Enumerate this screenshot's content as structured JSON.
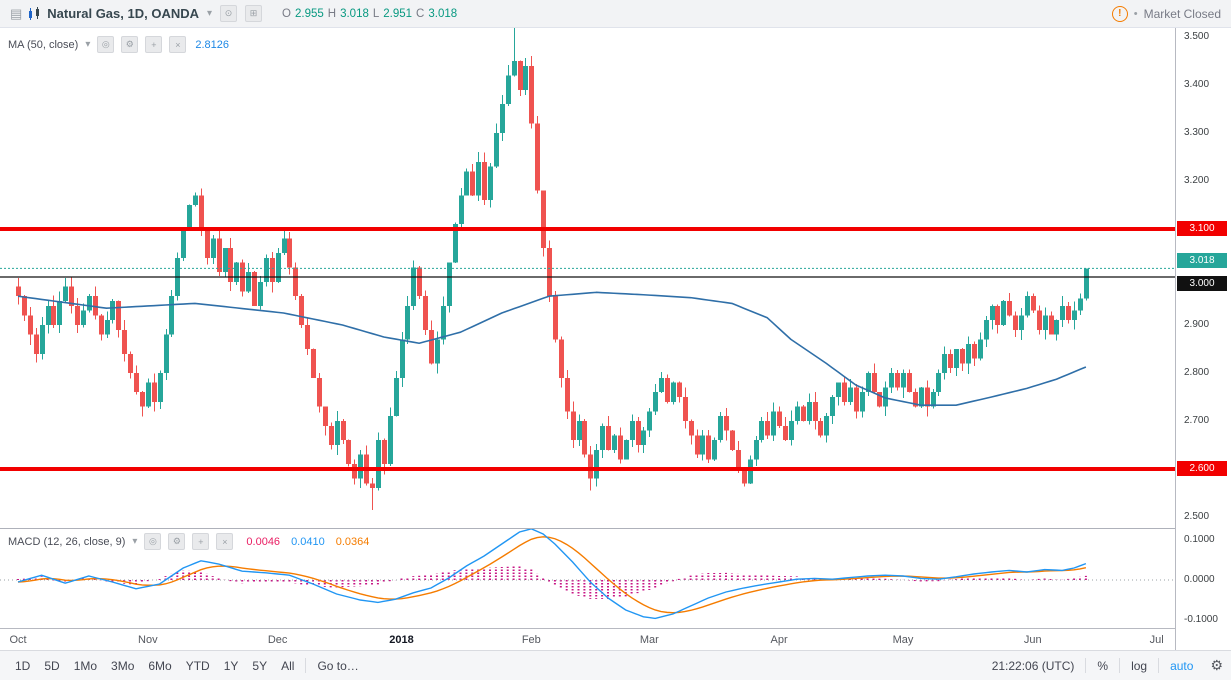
{
  "header": {
    "symbol_title": "Natural Gas, 1D, OANDA",
    "ohlc_keys": [
      "O",
      "H",
      "L",
      "C"
    ],
    "ohlc": {
      "o": "2.955",
      "h": "3.018",
      "l": "2.951",
      "c": "3.018"
    },
    "market_status": "Market Closed"
  },
  "indicators": {
    "ma": {
      "label": "MA (50, close)",
      "value": "2.8126"
    },
    "macd": {
      "label": "MACD (12, 26, close, 9)",
      "hist": "0.0046",
      "macd": "0.0410",
      "signal": "0.0364"
    }
  },
  "icons": {
    "menu": "▤",
    "caret": "▾",
    "eye": "◎",
    "gear": "⚙",
    "plus": "+",
    "close": "×",
    "circle_dot": "⊙",
    "squared_plus": "⊞",
    "warning": "!",
    "dot": "•"
  },
  "toolbar": {
    "ranges": [
      "1D",
      "5D",
      "1Mo",
      "3Mo",
      "6Mo",
      "YTD",
      "1Y",
      "5Y",
      "All"
    ],
    "goto": "Go to…",
    "clock": "21:22:06 (UTC)",
    "percent": "%",
    "log": "log",
    "auto": "auto"
  },
  "chart_data": {
    "type": "candlestick",
    "symbol": "Natural Gas",
    "interval": "1D",
    "source": "OANDA",
    "colors": {
      "up": "#26a69a",
      "down": "#ef5350",
      "ma": "#2f6fa8",
      "macd": "#2196f3",
      "signal": "#f57c00",
      "hist": "#c71585",
      "level": "#f20000",
      "last": "#26a69a",
      "black_line": "#111111"
    },
    "closes": [
      2.96,
      2.92,
      2.88,
      2.84,
      2.9,
      2.94,
      2.9,
      2.95,
      2.98,
      2.94,
      2.9,
      2.93,
      2.96,
      2.92,
      2.88,
      2.91,
      2.95,
      2.89,
      2.84,
      2.8,
      2.76,
      2.73,
      2.78,
      2.74,
      2.8,
      2.88,
      2.96,
      3.04,
      3.1,
      3.15,
      3.17,
      3.1,
      3.04,
      3.08,
      3.01,
      3.06,
      2.99,
      3.03,
      2.97,
      3.01,
      2.94,
      2.99,
      3.04,
      2.99,
      3.05,
      3.08,
      3.02,
      2.96,
      2.9,
      2.85,
      2.79,
      2.73,
      2.69,
      2.65,
      2.7,
      2.66,
      2.61,
      2.58,
      2.63,
      2.57,
      2.56,
      2.66,
      2.61,
      2.71,
      2.79,
      2.87,
      2.94,
      3.02,
      2.96,
      2.89,
      2.82,
      2.87,
      2.94,
      3.03,
      3.11,
      3.17,
      3.22,
      3.17,
      3.24,
      3.16,
      3.23,
      3.3,
      3.36,
      3.42,
      3.45,
      3.39,
      3.44,
      3.32,
      3.18,
      3.06,
      2.96,
      2.87,
      2.79,
      2.72,
      2.66,
      2.7,
      2.63,
      2.58,
      2.64,
      2.69,
      2.64,
      2.67,
      2.62,
      2.66,
      2.7,
      2.65,
      2.68,
      2.72,
      2.76,
      2.79,
      2.74,
      2.78,
      2.75,
      2.7,
      2.67,
      2.63,
      2.67,
      2.62,
      2.66,
      2.71,
      2.68,
      2.64,
      2.6,
      2.57,
      2.62,
      2.66,
      2.7,
      2.67,
      2.72,
      2.69,
      2.66,
      2.7,
      2.73,
      2.7,
      2.74,
      2.7,
      2.67,
      2.71,
      2.75,
      2.78,
      2.74,
      2.77,
      2.72,
      2.76,
      2.8,
      2.76,
      2.73,
      2.77,
      2.8,
      2.77,
      2.8,
      2.76,
      2.73,
      2.77,
      2.73,
      2.76,
      2.8,
      2.84,
      2.81,
      2.85,
      2.82,
      2.86,
      2.83,
      2.87,
      2.91,
      2.94,
      2.9,
      2.95,
      2.92,
      2.89,
      2.92,
      2.96,
      2.93,
      2.89,
      2.92,
      2.88,
      2.91,
      2.94,
      2.91,
      2.93,
      2.955,
      3.018
    ],
    "first_open": 2.98,
    "last_candle": {
      "o": 2.955,
      "h": 3.018,
      "l": 2.951,
      "c": 3.018
    },
    "wick_overrides": {
      "60": {
        "l": 2.515
      },
      "84": {
        "h": 3.52
      },
      "97": {
        "l": 2.555
      },
      "181": {
        "h": 3.018,
        "l": 2.951
      }
    },
    "ma50": [
      [
        0,
        2.96
      ],
      [
        15,
        2.935
      ],
      [
        30,
        2.945
      ],
      [
        45,
        2.925
      ],
      [
        55,
        2.9
      ],
      [
        62,
        2.875
      ],
      [
        68,
        2.862
      ],
      [
        75,
        2.885
      ],
      [
        82,
        2.925
      ],
      [
        90,
        2.96
      ],
      [
        98,
        2.968
      ],
      [
        106,
        2.963
      ],
      [
        114,
        2.957
      ],
      [
        121,
        2.945
      ],
      [
        127,
        2.915
      ],
      [
        131,
        2.87
      ],
      [
        137,
        2.82
      ],
      [
        142,
        2.775
      ],
      [
        147,
        2.748
      ],
      [
        153,
        2.733
      ],
      [
        159,
        2.733
      ],
      [
        165,
        2.75
      ],
      [
        171,
        2.768
      ],
      [
        176,
        2.787
      ],
      [
        181,
        2.8126
      ]
    ],
    "macd_line": [
      [
        0,
        -0.005
      ],
      [
        4,
        0.012
      ],
      [
        8,
        -0.008
      ],
      [
        12,
        0.01
      ],
      [
        16,
        -0.005
      ],
      [
        20,
        -0.022
      ],
      [
        24,
        -0.01
      ],
      [
        28,
        0.03
      ],
      [
        31,
        0.048
      ],
      [
        34,
        0.04
      ],
      [
        38,
        0.022
      ],
      [
        42,
        0.018
      ],
      [
        46,
        0.012
      ],
      [
        50,
        -0.01
      ],
      [
        54,
        -0.035
      ],
      [
        58,
        -0.05
      ],
      [
        61,
        -0.056
      ],
      [
        64,
        -0.048
      ],
      [
        67,
        -0.032
      ],
      [
        70,
        -0.02
      ],
      [
        73,
        0.005
      ],
      [
        76,
        0.035
      ],
      [
        79,
        0.06
      ],
      [
        82,
        0.09
      ],
      [
        85,
        0.12
      ],
      [
        87,
        0.128
      ],
      [
        89,
        0.115
      ],
      [
        91,
        0.09
      ],
      [
        94,
        0.045
      ],
      [
        97,
        -0.005
      ],
      [
        100,
        -0.045
      ],
      [
        103,
        -0.075
      ],
      [
        106,
        -0.092
      ],
      [
        108,
        -0.096
      ],
      [
        111,
        -0.085
      ],
      [
        114,
        -0.065
      ],
      [
        117,
        -0.045
      ],
      [
        120,
        -0.03
      ],
      [
        123,
        -0.02
      ],
      [
        126,
        -0.012
      ],
      [
        129,
        -0.005
      ],
      [
        132,
        0.002
      ],
      [
        135,
        0.004
      ],
      [
        138,
        0.002
      ],
      [
        141,
        0.006
      ],
      [
        144,
        0.01
      ],
      [
        147,
        0.012
      ],
      [
        150,
        0.01
      ],
      [
        153,
        0.004
      ],
      [
        156,
        0.002
      ],
      [
        159,
        0.008
      ],
      [
        162,
        0.015
      ],
      [
        165,
        0.02
      ],
      [
        168,
        0.024
      ],
      [
        171,
        0.02
      ],
      [
        174,
        0.026
      ],
      [
        177,
        0.024
      ],
      [
        179,
        0.03
      ],
      [
        181,
        0.041
      ]
    ],
    "levels": [
      {
        "price": 3.1,
        "type": "resistance"
      },
      {
        "price": 2.6,
        "type": "support"
      }
    ],
    "last_price_line": 3.018,
    "black_line_price": 3.0,
    "y_axis_ticks": [
      3.5,
      3.4,
      3.3,
      3.2,
      2.9,
      2.8,
      2.7,
      2.5
    ],
    "y_axis_tags": [
      {
        "p": 3.1,
        "bg": "#f20000"
      },
      {
        "p": 3.018,
        "bg": "#26a69a"
      },
      {
        "p": 3.0,
        "bg": "#111111"
      },
      {
        "p": 2.6,
        "bg": "#f20000"
      }
    ],
    "macd_axis_ticks": [
      0.1,
      0.0,
      -0.1
    ],
    "months": [
      {
        "label": "Oct",
        "day": 0
      },
      {
        "label": "Nov",
        "day": 22
      },
      {
        "label": "Dec",
        "day": 44
      },
      {
        "label": "2018",
        "day": 65,
        "bold": true
      },
      {
        "label": "Feb",
        "day": 87
      },
      {
        "label": "Mar",
        "day": 107
      },
      {
        "label": "Apr",
        "day": 129
      },
      {
        "label": "May",
        "day": 150
      },
      {
        "label": "Jun",
        "day": 172
      },
      {
        "label": "Jul",
        "day": 193
      }
    ]
  }
}
